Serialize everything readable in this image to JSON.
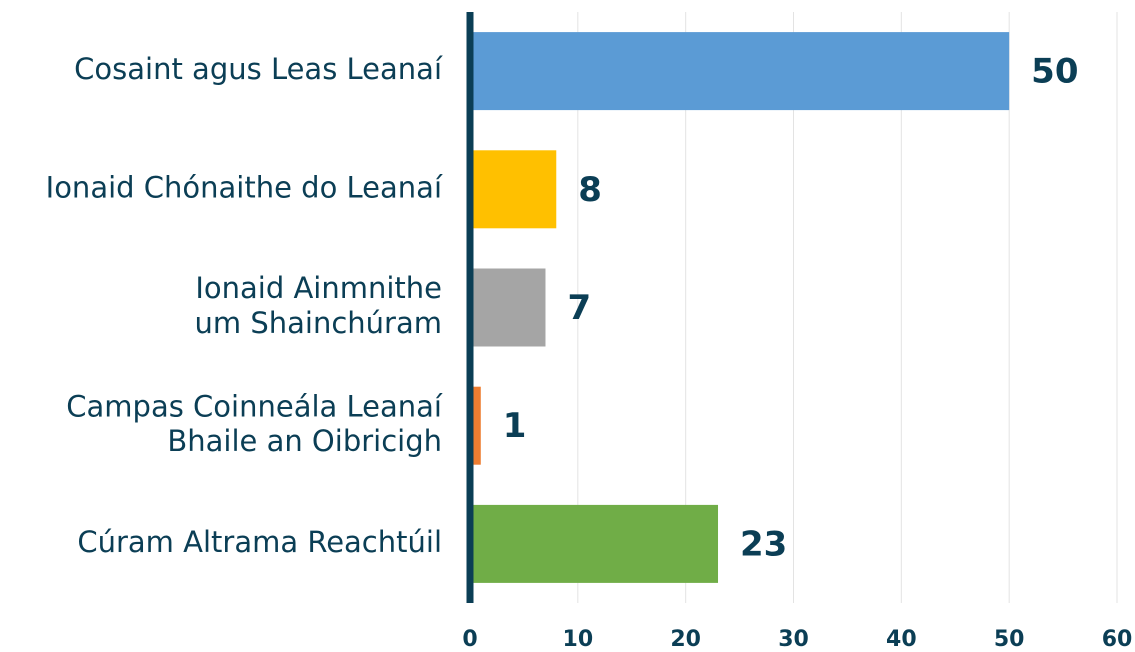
{
  "chart_data": {
    "type": "bar",
    "orientation": "horizontal",
    "categories": [
      "Cosaint agus Leas Leanaí",
      "Ionaid Chónaithe do Leanaí",
      "Ionaid Ainmnithe\num Shainchúram",
      "Campas Coinneála Leanaí\nBhaile an Oibricigh",
      "Cúram Altrama Reachtúil"
    ],
    "values": [
      50,
      8,
      7,
      1,
      23
    ],
    "colors": [
      "#5b9bd5",
      "#ffc000",
      "#a5a5a5",
      "#ed7d31",
      "#70ad47"
    ],
    "xlim": [
      0,
      60
    ],
    "xticks": [
      0,
      10,
      20,
      30,
      40,
      50,
      60
    ],
    "grid": true
  }
}
